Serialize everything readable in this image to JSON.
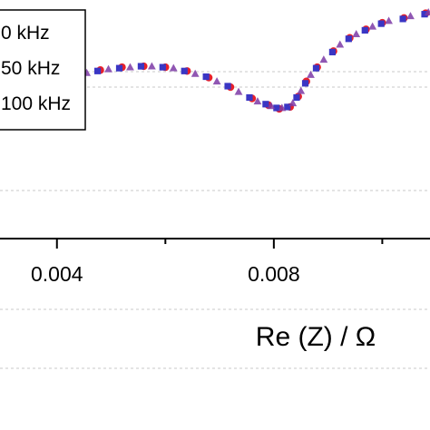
{
  "chart_data": {
    "type": "scatter",
    "title": "",
    "xlabel": "Re (Z) / Ω",
    "ylabel": "",
    "x_ticks": [
      {
        "value": 0.004,
        "label": "0.004"
      },
      {
        "value": 0.008,
        "label": "0.008"
      }
    ],
    "visible_xlim": [
      0.00295,
      0.01088
    ],
    "visible_ylim": [
      -0.00046,
      0.00206
    ],
    "legend": {
      "placement": "top-left",
      "entries": [
        "0 kHz",
        "50 kHz",
        "100 kHz"
      ]
    },
    "grid": "dashed horizontal",
    "series": [
      {
        "color": "#e8202a",
        "marker": "circle",
        "x": [
          0.00295,
          0.0033,
          0.00365,
          0.004,
          0.0044,
          0.0048,
          0.0052,
          0.0056,
          0.006,
          0.0064,
          0.0068,
          0.0072,
          0.0076,
          0.0079,
          0.0081,
          0.0083,
          0.00845,
          0.0086,
          0.0088,
          0.0091,
          0.0094,
          0.0097,
          0.01,
          0.0104,
          0.0108
        ],
        "y": [
          0.00094,
          0.00104,
          0.00113,
          0.0012,
          0.00127,
          0.00132,
          0.00135,
          0.00136,
          0.00135,
          0.00131,
          0.00124,
          0.00114,
          0.00102,
          0.00095,
          0.00091,
          0.00093,
          0.00104,
          0.0012,
          0.00135,
          0.00152,
          0.00166,
          0.00175,
          0.00182,
          0.00187,
          0.00192
        ]
      },
      {
        "color": "#3a36c4",
        "marker": "square",
        "x": [
          0.00295,
          0.00325,
          0.0036,
          0.00395,
          0.00435,
          0.00475,
          0.00515,
          0.00555,
          0.00595,
          0.00635,
          0.00675,
          0.00715,
          0.00755,
          0.00785,
          0.00805,
          0.00825,
          0.00842,
          0.00858,
          0.00878,
          0.00908,
          0.00938,
          0.00968,
          0.00998,
          0.01038,
          0.01078
        ],
        "y": [
          0.00093,
          0.00103,
          0.00112,
          0.00119,
          0.00126,
          0.00131,
          0.00134,
          0.00136,
          0.00135,
          0.00131,
          0.00125,
          0.00115,
          0.00103,
          0.00096,
          0.00092,
          0.00093,
          0.00103,
          0.00118,
          0.00134,
          0.00151,
          0.00165,
          0.00174,
          0.00181,
          0.00186,
          0.00191
        ]
      },
      {
        "color": "#7c3aa6",
        "marker": "triangle",
        "x": [
          0.0031,
          0.00345,
          0.0038,
          0.00415,
          0.00455,
          0.00495,
          0.00535,
          0.00575,
          0.00615,
          0.00655,
          0.00695,
          0.00735,
          0.0077,
          0.00795,
          0.00815,
          0.00835,
          0.0085,
          0.00868,
          0.00892,
          0.00922,
          0.00952,
          0.00982,
          0.01012,
          0.01052,
          0.01085
        ],
        "y": [
          0.00099,
          0.00108,
          0.00116,
          0.00123,
          0.00129,
          0.00133,
          0.00135,
          0.00136,
          0.00134,
          0.00128,
          0.0012,
          0.00109,
          0.00099,
          0.00094,
          0.00092,
          0.00097,
          0.0011,
          0.00127,
          0.00143,
          0.00159,
          0.0017,
          0.00178,
          0.00184,
          0.00189,
          0.00193
        ]
      }
    ]
  }
}
